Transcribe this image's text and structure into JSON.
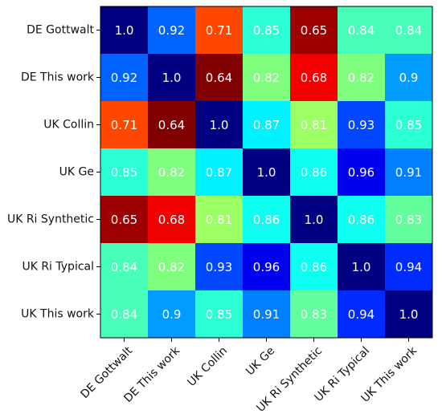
{
  "chart_data": {
    "type": "heatmap",
    "title": "",
    "xlabel": "",
    "ylabel": "",
    "categories": [
      "DE Gottwalt",
      "DE This work",
      "UK Collin",
      "UK Ge",
      "UK Ri Synthetic",
      "UK Ri Typical",
      "UK This work"
    ],
    "values": [
      [
        1.0,
        0.92,
        0.71,
        0.85,
        0.65,
        0.84,
        0.84
      ],
      [
        0.92,
        1.0,
        0.64,
        0.82,
        0.68,
        0.82,
        0.9
      ],
      [
        0.71,
        0.64,
        1.0,
        0.87,
        0.81,
        0.93,
        0.85
      ],
      [
        0.85,
        0.82,
        0.87,
        1.0,
        0.86,
        0.96,
        0.91
      ],
      [
        0.65,
        0.68,
        0.81,
        0.86,
        1.0,
        0.86,
        0.83
      ],
      [
        0.84,
        0.82,
        0.93,
        0.96,
        0.86,
        1.0,
        0.94
      ],
      [
        0.84,
        0.9,
        0.85,
        0.91,
        0.83,
        0.94,
        1.0
      ]
    ],
    "value_labels": [
      [
        "1.0",
        "0.92",
        "0.71",
        "0.85",
        "0.65",
        "0.84",
        "0.84"
      ],
      [
        "0.92",
        "1.0",
        "0.64",
        "0.82",
        "0.68",
        "0.82",
        "0.9"
      ],
      [
        "0.71",
        "0.64",
        "1.0",
        "0.87",
        "0.81",
        "0.93",
        "0.85"
      ],
      [
        "0.85",
        "0.82",
        "0.87",
        "1.0",
        "0.86",
        "0.96",
        "0.91"
      ],
      [
        "0.65",
        "0.68",
        "0.81",
        "0.86",
        "1.0",
        "0.86",
        "0.83"
      ],
      [
        "0.84",
        "0.82",
        "0.93",
        "0.96",
        "0.86",
        "1.0",
        "0.94"
      ],
      [
        "0.84",
        "0.9",
        "0.85",
        "0.91",
        "0.83",
        "0.94",
        "1.0"
      ]
    ],
    "color_range": [
      0.64,
      1.0
    ],
    "colormap": "jet-reversed",
    "x_tick_rotation": "45 degrees",
    "grid": false,
    "legend": "none"
  }
}
